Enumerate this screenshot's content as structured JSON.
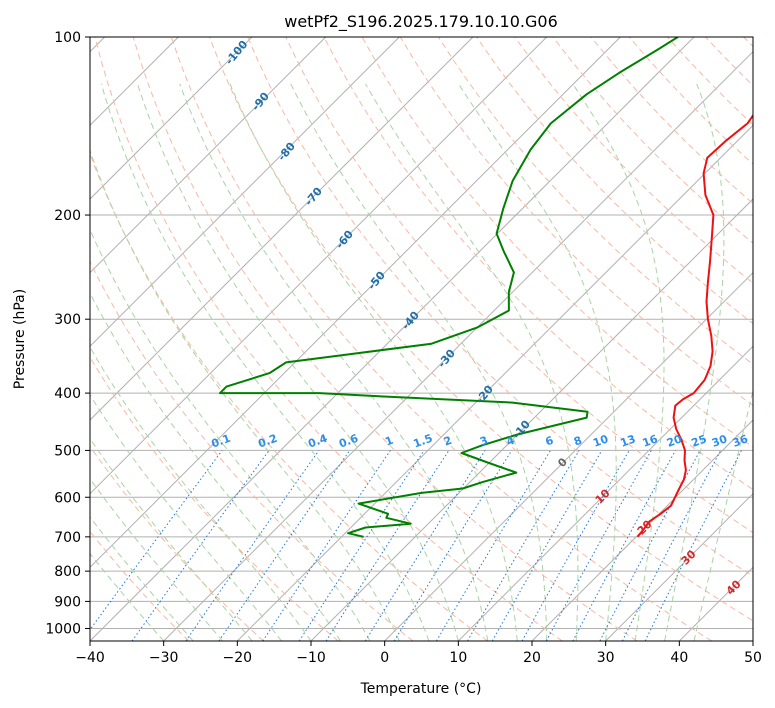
{
  "chart_data": {
    "type": "line",
    "diagram": "skew-t log-p",
    "title": "wetPf2_S196.2025.179.10.10.G06",
    "xlabel": "Temperature (°C)",
    "ylabel": "Pressure (hPa)",
    "xlim": [
      -40,
      50
    ],
    "ylim": [
      1050,
      100
    ],
    "y_scale": "log",
    "grid": true,
    "x_ticks": [
      "−40",
      "−30",
      "−20",
      "−10",
      "0",
      "10",
      "20",
      "30",
      "40",
      "50"
    ],
    "y_ticks": [
      {
        "p": 100,
        "label": "100"
      },
      {
        "p": 200,
        "label": "200"
      },
      {
        "p": 300,
        "label": "300"
      },
      {
        "p": 400,
        "label": "400"
      },
      {
        "p": 500,
        "label": "500"
      },
      {
        "p": 600,
        "label": "600"
      },
      {
        "p": 700,
        "label": "700"
      },
      {
        "p": 800,
        "label": "800"
      },
      {
        "p": 900,
        "label": "900"
      },
      {
        "p": 1000,
        "label": "1000"
      }
    ],
    "series": [
      {
        "color": "#ee1111",
        "comment": "temperature profile",
        "points": [
          [
            20.2,
            700
          ],
          [
            20.0,
            680
          ],
          [
            19.7,
            660
          ],
          [
            20.2,
            640
          ],
          [
            20.5,
            620
          ],
          [
            19.9,
            600
          ],
          [
            19.3,
            580
          ],
          [
            18.7,
            560
          ],
          [
            17.7,
            540
          ],
          [
            16.2,
            520
          ],
          [
            14.9,
            500
          ],
          [
            13.0,
            480
          ],
          [
            10.8,
            460
          ],
          [
            8.9,
            440
          ],
          [
            7.5,
            420
          ],
          [
            7.7,
            410
          ],
          [
            8.3,
            400
          ],
          [
            8.0,
            380
          ],
          [
            6.9,
            360
          ],
          [
            5.2,
            340
          ],
          [
            2.9,
            320
          ],
          [
            0.2,
            300
          ],
          [
            -2.4,
            280
          ],
          [
            -4.8,
            260
          ],
          [
            -7.3,
            240
          ],
          [
            -10.1,
            220
          ],
          [
            -13.2,
            200
          ],
          [
            -17.0,
            185
          ],
          [
            -20.2,
            170
          ],
          [
            -21.8,
            160
          ],
          [
            -21.6,
            150
          ],
          [
            -21.0,
            140
          ],
          [
            -21.8,
            130
          ],
          [
            -24.0,
            120
          ],
          [
            -25.7,
            110
          ],
          [
            -26.5,
            100
          ]
        ]
      },
      {
        "color": "#008000",
        "comment": "dewpoint profile",
        "points": [
          [
            -17.0,
            700
          ],
          [
            -19.6,
            690
          ],
          [
            -18.0,
            675
          ],
          [
            -12.4,
            665
          ],
          [
            -16.5,
            650
          ],
          [
            -16.8,
            640
          ],
          [
            -22.2,
            615
          ],
          [
            -15.1,
            590
          ],
          [
            -10.1,
            580
          ],
          [
            -8.2,
            565
          ],
          [
            -5.0,
            545
          ],
          [
            -10.0,
            525
          ],
          [
            -15.1,
            505
          ],
          [
            -13.3,
            490
          ],
          [
            -10.0,
            470
          ],
          [
            -2.9,
            440
          ],
          [
            -3.6,
            430
          ],
          [
            -15.0,
            415
          ],
          [
            -34.0,
            405
          ],
          [
            -42.5,
            400
          ],
          [
            -56.0,
            400
          ],
          [
            -56.0,
            390
          ],
          [
            -52.0,
            370
          ],
          [
            -51.2,
            355
          ],
          [
            -44.5,
            345
          ],
          [
            -34.0,
            330
          ],
          [
            -30.0,
            310
          ],
          [
            -28.0,
            290
          ],
          [
            -30.5,
            270
          ],
          [
            -32.5,
            250
          ],
          [
            -36.8,
            230
          ],
          [
            -40.1,
            215
          ],
          [
            -42.6,
            195
          ],
          [
            -45.1,
            175
          ],
          [
            -46.9,
            155
          ],
          [
            -47.7,
            140
          ],
          [
            -46.8,
            125
          ],
          [
            -45.3,
            115
          ],
          [
            -43.2,
            105
          ],
          [
            -42.2,
            100
          ]
        ]
      }
    ],
    "mixing_ratio_labels": [
      "0.1",
      "0.2",
      "0.4",
      "0.6",
      "1",
      "1.5",
      "2",
      "3",
      "4",
      "6",
      "8",
      "10",
      "13",
      "16",
      "20",
      "25",
      "30",
      "36"
    ],
    "dry_adiabat_labels": [
      "-100",
      "-90",
      "-80",
      "-70",
      "-60",
      "-50",
      "-40",
      "-30",
      "-20",
      "-10"
    ],
    "moist_adiabat_labels": [
      "0",
      "10",
      "20",
      "30",
      "40"
    ]
  }
}
